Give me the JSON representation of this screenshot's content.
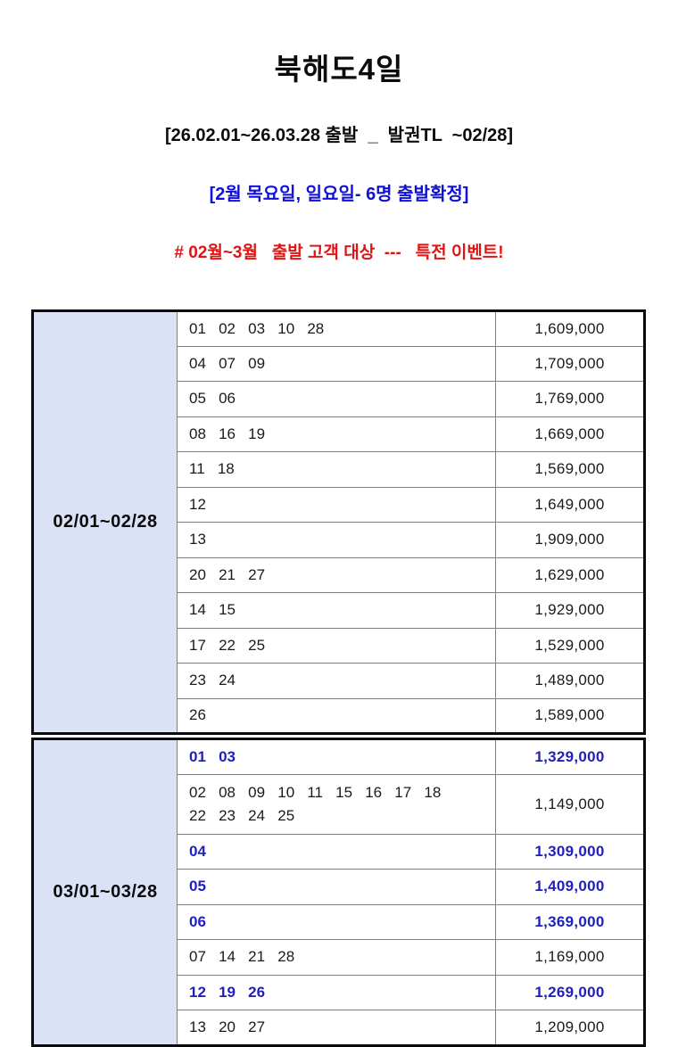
{
  "header": {
    "title": "북해도4일",
    "subtitle": "[26.02.01~26.03.28 출발  _  발권TL  ~02/28]",
    "note_blue": "[2월 목요일, 일요일- 6명 출발확정]",
    "note_red": "# 02월~3월   출발 고객 대상  ---   특전 이벤트!"
  },
  "colors": {
    "note_blue": "#1010d8",
    "note_red": "#e01414",
    "highlight_blue": "#1f1fbe",
    "label_bg": "#dce2f6",
    "outer_border": "#0a0a0a",
    "inner_border": "#7f7f7f"
  },
  "sections": [
    {
      "label": "02/01~02/28",
      "rows": [
        {
          "dates": "01   02   03   10   28",
          "price": "1,609,000",
          "highlight": false,
          "tall": false
        },
        {
          "dates": "04   07   09",
          "price": "1,709,000",
          "highlight": false,
          "tall": false
        },
        {
          "dates": "05   06",
          "price": "1,769,000",
          "highlight": false,
          "tall": false
        },
        {
          "dates": "08   16   19",
          "price": "1,669,000",
          "highlight": false,
          "tall": false
        },
        {
          "dates": "11   18",
          "price": "1,569,000",
          "highlight": false,
          "tall": false
        },
        {
          "dates": "12",
          "price": "1,649,000",
          "highlight": false,
          "tall": false
        },
        {
          "dates": "13",
          "price": "1,909,000",
          "highlight": false,
          "tall": false
        },
        {
          "dates": "20   21   27",
          "price": "1,629,000",
          "highlight": false,
          "tall": false
        },
        {
          "dates": "14   15",
          "price": "1,929,000",
          "highlight": false,
          "tall": false
        },
        {
          "dates": "17   22   25",
          "price": "1,529,000",
          "highlight": false,
          "tall": false
        },
        {
          "dates": "23   24",
          "price": "1,489,000",
          "highlight": false,
          "tall": false
        },
        {
          "dates": "26",
          "price": "1,589,000",
          "highlight": false,
          "tall": false
        }
      ]
    },
    {
      "label": "03/01~03/28",
      "rows": [
        {
          "dates": "01   03",
          "price": "1,329,000",
          "highlight": true,
          "tall": false
        },
        {
          "dates": "02   08   09   10   11   15   16   17   18\n22   23   24   25",
          "price": "1,149,000",
          "highlight": false,
          "tall": true
        },
        {
          "dates": "04",
          "price": "1,309,000",
          "highlight": true,
          "tall": false
        },
        {
          "dates": "05",
          "price": "1,409,000",
          "highlight": true,
          "tall": false
        },
        {
          "dates": "06",
          "price": "1,369,000",
          "highlight": true,
          "tall": false
        },
        {
          "dates": "07   14   21   28",
          "price": "1,169,000",
          "highlight": false,
          "tall": false
        },
        {
          "dates": "12   19   26",
          "price": "1,269,000",
          "highlight": true,
          "tall": false
        },
        {
          "dates": "13   20   27",
          "price": "1,209,000",
          "highlight": false,
          "tall": false
        }
      ]
    }
  ]
}
